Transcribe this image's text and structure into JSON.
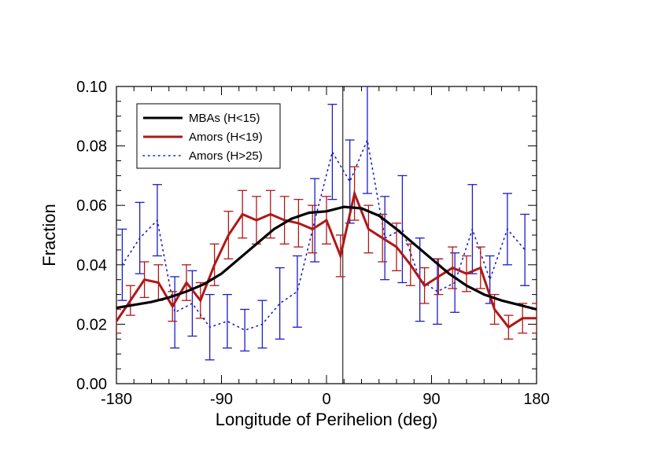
{
  "chart_data": {
    "type": "line",
    "xlabel": "Longitude of Perihelion (deg)",
    "ylabel": "Fraction",
    "xlim": [
      -180,
      180
    ],
    "ylim": [
      0.0,
      0.1
    ],
    "x_ticks": [
      -180,
      -90,
      0,
      90,
      180
    ],
    "x_tick_labels": [
      "-180",
      "-90",
      "0",
      "90",
      "180"
    ],
    "y_ticks": [
      0.0,
      0.02,
      0.04,
      0.06,
      0.08,
      0.1
    ],
    "y_tick_labels": [
      "0.00",
      "0.02",
      "0.04",
      "0.06",
      "0.08",
      "0.10"
    ],
    "vertical_line_x": 14,
    "legend_position": "top-left",
    "series": [
      {
        "name": "MBAs (H<15)",
        "color": "#000000",
        "style": "solid",
        "x": [
          -180,
          -165,
          -150,
          -135,
          -120,
          -105,
          -90,
          -75,
          -60,
          -45,
          -30,
          -15,
          0,
          15,
          30,
          45,
          60,
          75,
          90,
          105,
          120,
          135,
          150,
          165,
          180
        ],
        "values": [
          0.0255,
          0.0265,
          0.0275,
          0.029,
          0.031,
          0.0335,
          0.037,
          0.042,
          0.047,
          0.052,
          0.0555,
          0.0575,
          0.058,
          0.0595,
          0.059,
          0.0565,
          0.052,
          0.047,
          0.042,
          0.037,
          0.033,
          0.03,
          0.028,
          0.0265,
          0.025
        ]
      },
      {
        "name": "Amors (H<19)",
        "color": "#b01818",
        "style": "solid",
        "x": [
          -180,
          -168,
          -156,
          -144,
          -132,
          -120,
          -108,
          -96,
          -84,
          -72,
          -60,
          -48,
          -36,
          -24,
          -12,
          0,
          12,
          24,
          36,
          48,
          60,
          72,
          84,
          96,
          108,
          120,
          132,
          144,
          156,
          168,
          180
        ],
        "values": [
          0.021,
          0.028,
          0.035,
          0.034,
          0.026,
          0.034,
          0.028,
          0.04,
          0.05,
          0.057,
          0.055,
          0.057,
          0.055,
          0.054,
          0.052,
          0.055,
          0.043,
          0.064,
          0.052,
          0.049,
          0.046,
          0.04,
          0.033,
          0.036,
          0.039,
          0.037,
          0.039,
          0.025,
          0.019,
          0.022,
          0.022
        ],
        "errors": [
          0.004,
          0.005,
          0.006,
          0.006,
          0.005,
          0.006,
          0.006,
          0.007,
          0.008,
          0.008,
          0.008,
          0.008,
          0.008,
          0.008,
          0.008,
          0.008,
          0.007,
          0.009,
          0.008,
          0.008,
          0.008,
          0.007,
          0.006,
          0.006,
          0.007,
          0.006,
          0.007,
          0.005,
          0.004,
          0.005,
          0.005
        ]
      },
      {
        "name": "Amors (H>25)",
        "color": "#1c1cc8",
        "style": "dotted",
        "x": [
          -175,
          -160,
          -145,
          -130,
          -115,
          -100,
          -85,
          -70,
          -55,
          -40,
          -25,
          -10,
          5,
          20,
          35,
          50,
          65,
          80,
          95,
          110,
          125,
          140,
          155,
          170
        ],
        "values": [
          0.04,
          0.049,
          0.055,
          0.024,
          0.027,
          0.019,
          0.021,
          0.018,
          0.02,
          0.027,
          0.031,
          0.055,
          0.078,
          0.068,
          0.082,
          0.049,
          0.052,
          0.035,
          0.031,
          0.034,
          0.052,
          0.035,
          0.052,
          0.045
        ],
        "errors": [
          0.012,
          0.012,
          0.012,
          0.012,
          0.011,
          0.011,
          0.009,
          0.007,
          0.008,
          0.012,
          0.012,
          0.014,
          0.016,
          0.014,
          0.018,
          0.014,
          0.018,
          0.014,
          0.011,
          0.01,
          0.015,
          0.008,
          0.012,
          0.012
        ]
      }
    ]
  }
}
